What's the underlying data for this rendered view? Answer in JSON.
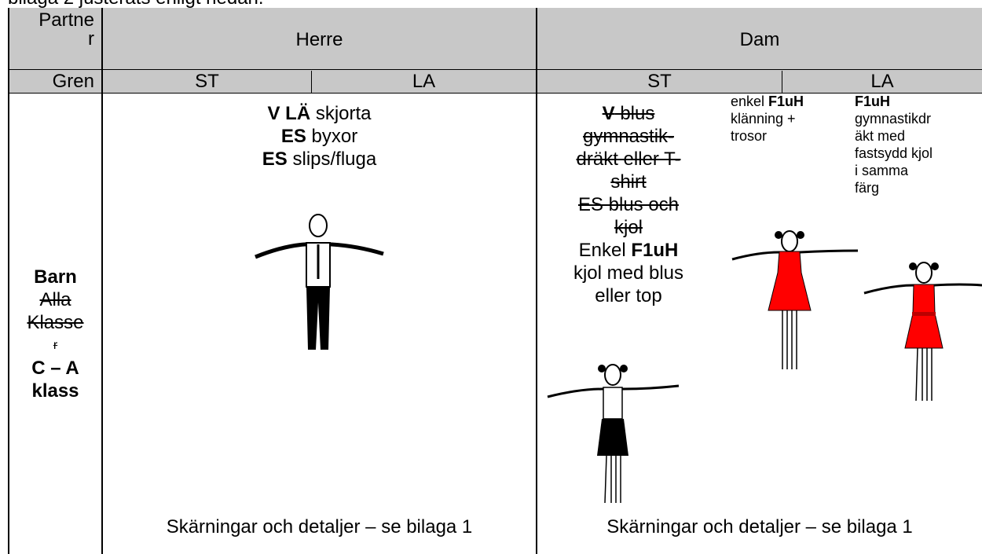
{
  "intro": "bilaga 2 justerats enligt nedan.",
  "table": {
    "partner": [
      "Partne",
      "r"
    ],
    "herre": "Herre",
    "dam": "Dam",
    "gren": "Gren",
    "herre_st": "ST",
    "herre_la": "LA",
    "dam_st": "ST",
    "dam_la": "LA",
    "row_label": [
      [
        {
          "text": "Barn",
          "bold": true
        }
      ],
      [
        {
          "text": "Alla",
          "strike": true
        }
      ],
      [
        {
          "text": "Klasse",
          "strike": true
        }
      ],
      [
        {
          "text": "r",
          "strike": true
        }
      ],
      [
        {
          "text": "C – A",
          "bold": true
        }
      ],
      [
        {
          "text": "klass",
          "bold": true
        }
      ]
    ],
    "herre_body": [
      [
        {
          "text": "V LÄ",
          "bold": true
        },
        {
          "text": " skjorta"
        }
      ],
      [
        {
          "text": "ES",
          "bold": true
        },
        {
          "text": " byxor"
        }
      ],
      [
        {
          "text": "ES",
          "bold": true
        },
        {
          "text": " slips/fluga"
        }
      ]
    ],
    "dam_st_body": [
      [
        {
          "text": "V",
          "bold": true,
          "strike": true
        },
        {
          "text": " blus",
          "strike": true
        }
      ],
      [
        {
          "text": "gymnastik-",
          "strike": true
        }
      ],
      [
        {
          "text": "dräkt eller T-",
          "strike": true
        }
      ],
      [
        {
          "text": "shirt",
          "strike": true
        }
      ],
      [
        {
          "text": "ES blus och",
          "strike": true
        }
      ],
      [
        {
          "text": "kjol",
          "strike": true
        }
      ],
      [
        {
          "text": "Enkel "
        },
        {
          "text": "F1uH",
          "bold": true
        }
      ],
      [
        {
          "text": "kjol med blus"
        }
      ],
      [
        {
          "text": "eller top"
        }
      ]
    ],
    "dam_la_dress": [
      [
        {
          "text": "enkel "
        },
        {
          "text": "F1uH",
          "bold": true
        }
      ],
      [
        {
          "text": "klänning +"
        }
      ],
      [
        {
          "text": "trosor"
        }
      ]
    ],
    "dam_la_gym": [
      [
        {
          "text": "F1uH",
          "bold": true
        }
      ],
      [
        {
          "text": "gymnastikdr"
        }
      ],
      [
        {
          "text": "äkt med"
        }
      ],
      [
        {
          "text": "fastsydd kjol"
        }
      ],
      [
        {
          "text": "i samma"
        }
      ],
      [
        {
          "text": "färg"
        }
      ]
    ],
    "herre_footer": "Skärningar och detaljer – se bilaga 1",
    "dam_footer": "Skärningar och detaljer – se bilaga 1"
  }
}
